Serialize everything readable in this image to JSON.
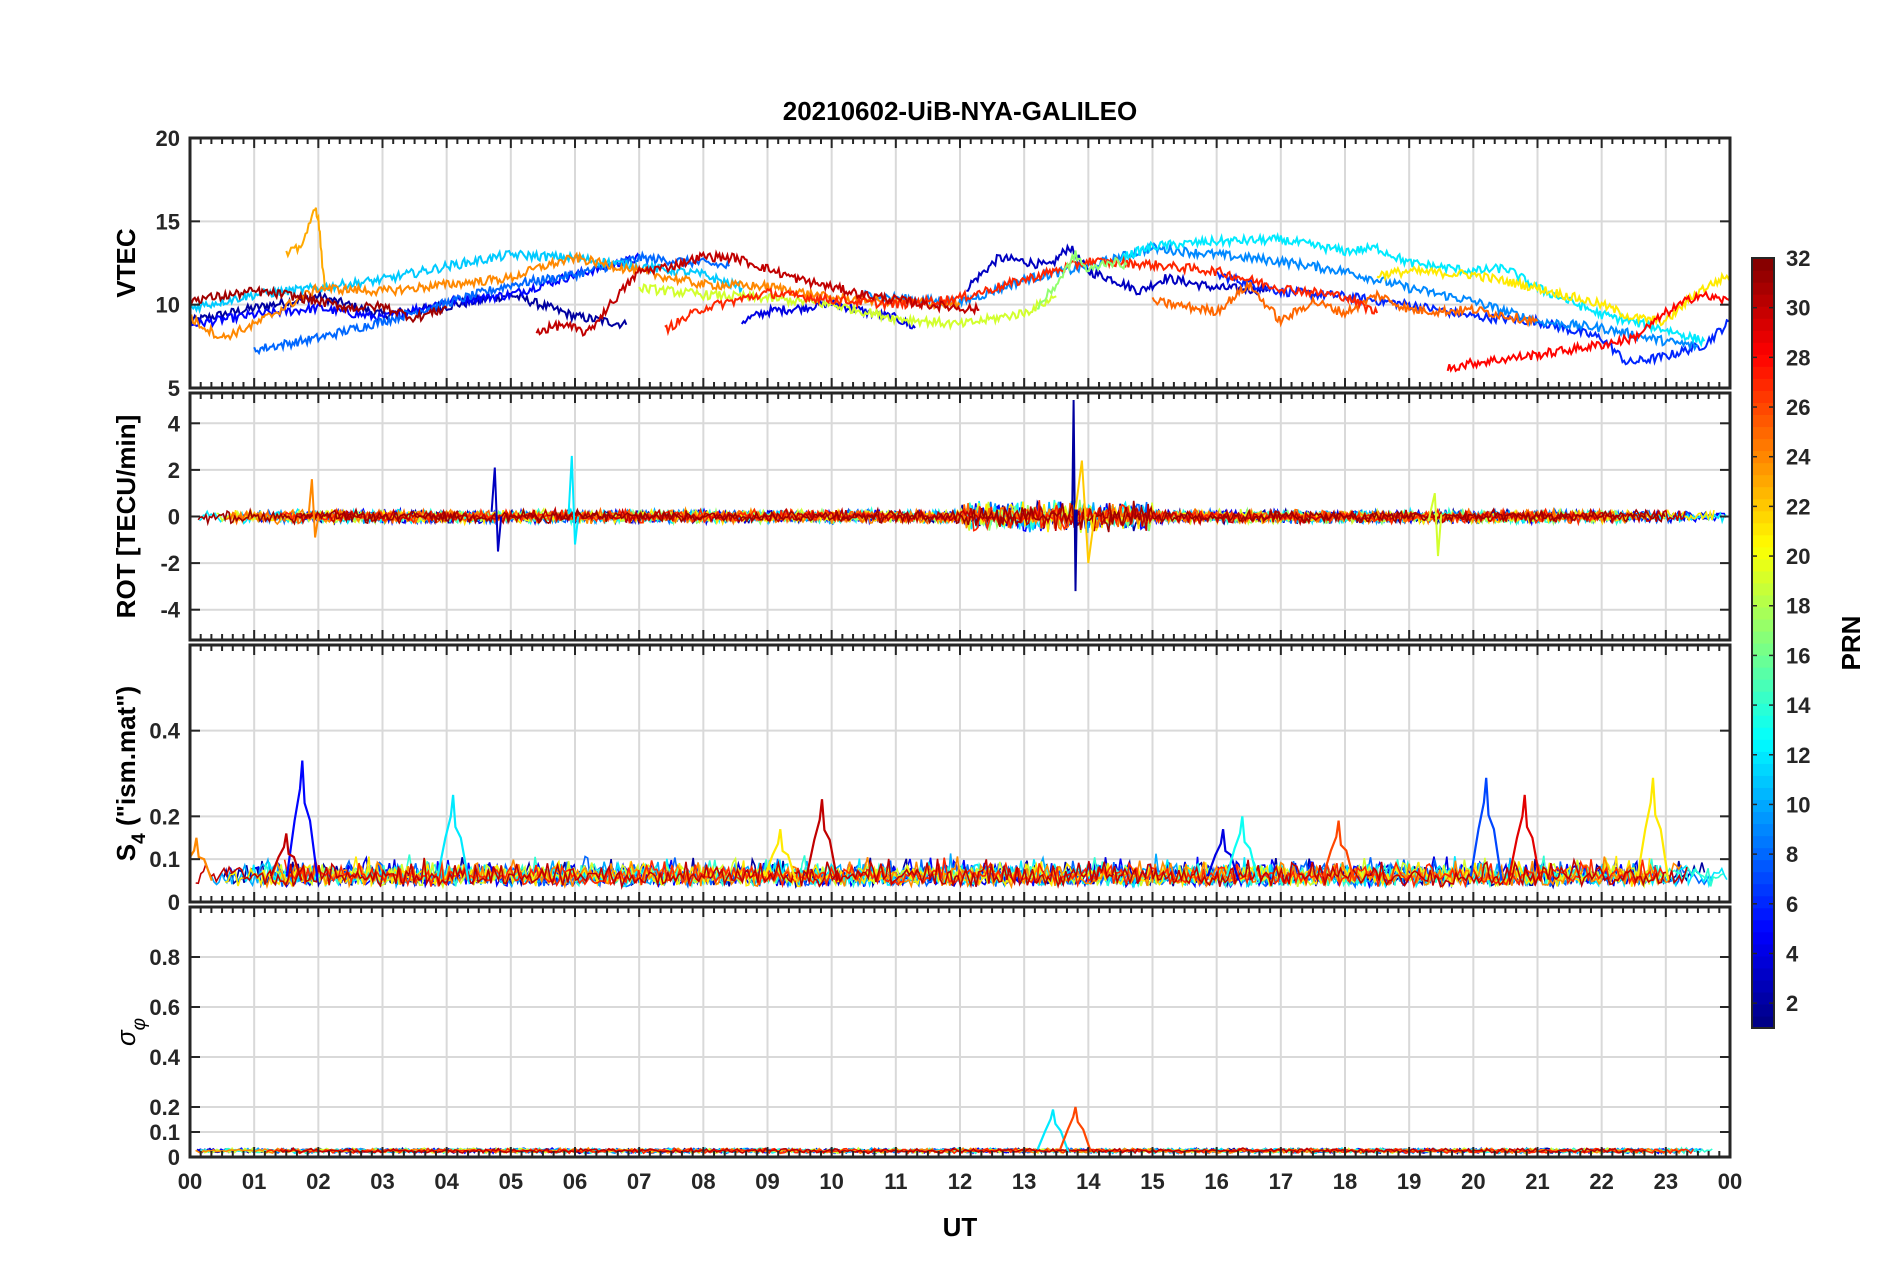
{
  "chart_data": {
    "type": "line",
    "title": "20210602-UiB-NYA-GALILEO",
    "xlabel": "UT",
    "x_tick_labels": [
      "00",
      "01",
      "02",
      "03",
      "04",
      "05",
      "06",
      "07",
      "08",
      "09",
      "10",
      "11",
      "12",
      "13",
      "14",
      "15",
      "16",
      "17",
      "18",
      "19",
      "20",
      "21",
      "22",
      "23",
      "00"
    ],
    "xlim_hours": [
      0,
      24
    ],
    "grid": true,
    "colorbar": {
      "label": "PRN",
      "range": [
        1,
        32
      ],
      "tick_labels": [
        "2",
        "4",
        "6",
        "8",
        "10",
        "12",
        "14",
        "16",
        "18",
        "20",
        "22",
        "24",
        "26",
        "28",
        "30",
        "32"
      ],
      "tick_values": [
        2,
        4,
        6,
        8,
        10,
        12,
        14,
        16,
        18,
        20,
        22,
        24,
        26,
        28,
        30,
        32
      ],
      "colormap": "jet"
    },
    "panels": [
      {
        "ylabel": "VTEC",
        "ylim": [
          5,
          20
        ],
        "y_ticks": [
          5,
          10,
          15,
          20
        ],
        "y_tick_labels": [
          "5",
          "10",
          "15",
          "20"
        ],
        "series": [
          {
            "prn": 2,
            "x": [
              0,
              1,
              2,
              3,
              4,
              5,
              6,
              6.8
            ],
            "y": [
              9.0,
              9.8,
              10.5,
              9.4,
              9.9,
              10.6,
              9.3,
              8.8
            ]
          },
          {
            "prn": 3,
            "x": [
              12.1,
              12.6,
              13.0,
              13.4,
              13.7,
              14.0,
              14.4,
              14.8,
              15.2,
              16.0,
              16.8
            ],
            "y": [
              11.0,
              12.8,
              12.6,
              12.3,
              13.5,
              12.0,
              11.5,
              10.8,
              11.6,
              11.0,
              10.9
            ]
          },
          {
            "prn": 4,
            "x": [
              8.6,
              9.0,
              9.5,
              10.0,
              10.5,
              11.0,
              11.3
            ],
            "y": [
              9.0,
              9.6,
              9.8,
              10.1,
              9.6,
              9.2,
              8.6
            ]
          },
          {
            "prn": 5,
            "x": [
              0,
              1,
              2,
              3,
              4,
              5,
              6,
              7
            ],
            "y": [
              8.8,
              9.4,
              9.8,
              9.2,
              10.2,
              10.6,
              11.8,
              12.8
            ]
          },
          {
            "prn": 6,
            "x": [
              16,
              17,
              18,
              19,
              20,
              21,
              22,
              22.4,
              23,
              23.6,
              24
            ],
            "y": [
              11.8,
              10.8,
              10.5,
              10.0,
              9.3,
              9.0,
              8.0,
              6.5,
              6.9,
              7.6,
              9.0
            ]
          },
          {
            "prn": 8,
            "x": [
              1,
              2,
              3,
              4,
              5,
              6,
              7,
              8,
              8.4
            ],
            "y": [
              7.3,
              8.0,
              9.0,
              10.1,
              11.2,
              11.8,
              12.8,
              12.5,
              12.3
            ]
          },
          {
            "prn": 9,
            "x": [
              10.5,
              11,
              12,
              13,
              14,
              15,
              16,
              17,
              18,
              19,
              20,
              21,
              22,
              23,
              23.5
            ],
            "y": [
              10.6,
              10.4,
              10.1,
              11.5,
              12.3,
              13.4,
              13.0,
              12.6,
              12.0,
              11.0,
              10.2,
              9.0,
              8.6,
              7.8,
              7.5
            ]
          },
          {
            "prn": 11,
            "x": [
              0,
              1,
              2,
              3,
              4,
              5,
              6,
              7,
              8,
              8.6
            ],
            "y": [
              9.8,
              10.6,
              11.0,
              11.5,
              12.3,
              13.0,
              12.8,
              12.3,
              11.8,
              11.0
            ]
          },
          {
            "prn": 12,
            "x": [
              14.5,
              15,
              16,
              17,
              18,
              18.5,
              19,
              20,
              20.5,
              21,
              22,
              23,
              23.6
            ],
            "y": [
              12.8,
              13.5,
              13.8,
              13.9,
              13.2,
              13.4,
              12.5,
              12.0,
              12.2,
              11.0,
              9.4,
              8.5,
              7.8
            ]
          },
          {
            "prn": 19,
            "x": [
              7,
              8,
              9,
              10,
              11,
              12,
              13,
              13.5
            ],
            "y": [
              11.0,
              10.6,
              10.4,
              10.0,
              9.2,
              8.8,
              9.5,
              10.5
            ]
          },
          {
            "prn": 21,
            "x": [
              18.5,
              19,
              20,
              21,
              22,
              22.5,
              23,
              23.5,
              24
            ],
            "y": [
              11.8,
              12.0,
              11.8,
              11.0,
              10.0,
              9.2,
              9.0,
              10.8,
              11.8
            ]
          },
          {
            "prn": 24,
            "x": [
              0,
              0.5,
              1,
              2,
              3,
              4,
              5,
              5.5,
              6,
              6.5,
              7,
              8,
              9,
              10,
              11,
              12
            ],
            "y": [
              9.2,
              8.0,
              8.8,
              11.0,
              10.8,
              11.2,
              11.6,
              12.3,
              12.8,
              12.4,
              12.0,
              11.2,
              11.1,
              10.4,
              10.2,
              10.0
            ]
          },
          {
            "prn": 25,
            "x": [
              15,
              16,
              16.5,
              17,
              17.5,
              18,
              18.5,
              19,
              19.5,
              20,
              21
            ],
            "y": [
              10.2,
              9.6,
              11.2,
              9.0,
              10.2,
              9.5,
              10.6,
              9.7,
              9.6,
              9.7,
              9.0
            ]
          },
          {
            "prn": 23,
            "x": [
              1.5,
              1.7,
              1.85,
              1.95,
              2.0,
              2.05,
              2.1
            ],
            "y": [
              13.0,
              13.4,
              14.6,
              15.8,
              15.3,
              13.0,
              11.0
            ]
          },
          {
            "prn": 27,
            "x": [
              7.4,
              8,
              9,
              10,
              11,
              12,
              13,
              14,
              15,
              16,
              17,
              18,
              18.5
            ],
            "y": [
              8.5,
              9.8,
              10.7,
              10.3,
              10.0,
              10.4,
              11.5,
              12.6,
              12.4,
              12.0,
              11.0,
              10.5,
              9.5
            ]
          },
          {
            "prn": 28,
            "x": [
              19.6,
              20,
              21,
              21.5,
              22,
              22.5,
              23,
              23.5,
              24
            ],
            "y": [
              6.2,
              6.5,
              7.0,
              7.3,
              7.6,
              8.0,
              9.5,
              10.6,
              10.2
            ]
          },
          {
            "prn": 30,
            "x": [
              5.4,
              5.8,
              6.2,
              6.5,
              7.0,
              7.5,
              8.0,
              8.5,
              9.5,
              10.5,
              11.5,
              12.3
            ],
            "y": [
              8.4,
              8.8,
              8.3,
              9.8,
              12.0,
              12.3,
              12.9,
              12.8,
              11.5,
              10.6,
              10.0,
              9.7
            ]
          },
          {
            "prn": 31,
            "x": [
              0,
              0.5,
              1,
              1.5,
              2,
              2.5,
              3,
              3.5,
              4
            ],
            "y": [
              10.3,
              10.5,
              10.8,
              10.6,
              10.2,
              9.8,
              9.9,
              9.2,
              9.8
            ]
          },
          {
            "prn": 17,
            "x": [
              13.2,
              13.5,
              13.8,
              14.0,
              14.3,
              14.6
            ],
            "y": [
              9.8,
              11.2,
              13.0,
              12.0,
              12.6,
              12.4
            ]
          }
        ]
      },
      {
        "ylabel": "ROT [TECU/min]",
        "ylim": [
          -5.3,
          5.3
        ],
        "y_ticks": [
          -4,
          -2,
          0,
          2,
          4
        ],
        "y_tick_labels": [
          "-4",
          "-2",
          "0",
          "2",
          "4"
        ],
        "series": [
          {
            "prn": 2,
            "x": [
              13.75,
              13.77,
              13.8,
              13.82
            ],
            "y": [
              0.5,
              5.0,
              -3.2,
              0.3
            ]
          },
          {
            "prn": 3,
            "x": [
              4.7,
              4.75,
              4.8,
              4.85
            ],
            "y": [
              0.2,
              2.1,
              -1.5,
              0.0
            ]
          },
          {
            "prn": 12,
            "x": [
              5.9,
              5.95,
              6.0,
              6.05
            ],
            "y": [
              0.1,
              2.6,
              -1.2,
              0.0
            ]
          },
          {
            "prn": 24,
            "x": [
              1.85,
              1.9,
              1.95,
              2.0
            ],
            "y": [
              0.1,
              1.6,
              -0.9,
              0.0
            ]
          },
          {
            "prn": 19,
            "x": [
              19.3,
              19.4,
              19.45,
              19.5
            ],
            "y": [
              -0.2,
              1.0,
              -1.7,
              0.1
            ]
          },
          {
            "prn": 22,
            "x": [
              13.8,
              13.9,
              14.0,
              14.1
            ],
            "y": [
              0.3,
              2.4,
              -2.0,
              0.1
            ]
          }
        ],
        "noise_band": {
          "x_range": [
            0,
            24
          ],
          "typical_amplitude": 0.5,
          "active_window_hours": [
            12,
            15
          ],
          "active_amplitude": 1.5
        }
      },
      {
        "ylabel": "S4 (\"ism.mat\")",
        "ylabel_main": "S",
        "ylabel_sub": "4",
        "ylabel_rest": " (\"ism.mat\")",
        "ylim": [
          0,
          0.6
        ],
        "y_ticks": [
          0,
          0.1,
          0.2,
          0.4
        ],
        "y_tick_labels": [
          "0",
          "0.1",
          "0.2",
          "0.4"
        ],
        "baseline": 0.05,
        "peaks": [
          {
            "prn": 5,
            "x": 1.75,
            "y": 0.33
          },
          {
            "prn": 30,
            "x": 1.5,
            "y": 0.16
          },
          {
            "prn": 12,
            "x": 4.1,
            "y": 0.25
          },
          {
            "prn": 30,
            "x": 9.85,
            "y": 0.24
          },
          {
            "prn": 21,
            "x": 9.2,
            "y": 0.17
          },
          {
            "prn": 4,
            "x": 16.1,
            "y": 0.17
          },
          {
            "prn": 13,
            "x": 16.4,
            "y": 0.2
          },
          {
            "prn": 26,
            "x": 17.9,
            "y": 0.19
          },
          {
            "prn": 7,
            "x": 20.2,
            "y": 0.29
          },
          {
            "prn": 29,
            "x": 20.8,
            "y": 0.25
          },
          {
            "prn": 21,
            "x": 22.8,
            "y": 0.29
          },
          {
            "prn": 24,
            "x": 0.1,
            "y": 0.15
          }
        ]
      },
      {
        "ylabel": "σφ",
        "ylabel_main": "σ",
        "ylabel_sub": "φ",
        "ylim": [
          0,
          1.0
        ],
        "y_ticks": [
          0,
          0.1,
          0.2,
          0.4,
          0.6,
          0.8
        ],
        "y_tick_labels": [
          "0",
          "0.1",
          "0.2",
          "0.4",
          "0.6",
          "0.8"
        ],
        "baseline": 0.02,
        "peaks": [
          {
            "prn": 12,
            "x": 13.45,
            "y": 0.19
          },
          {
            "prn": 26,
            "x": 13.8,
            "y": 0.2
          }
        ]
      }
    ]
  }
}
